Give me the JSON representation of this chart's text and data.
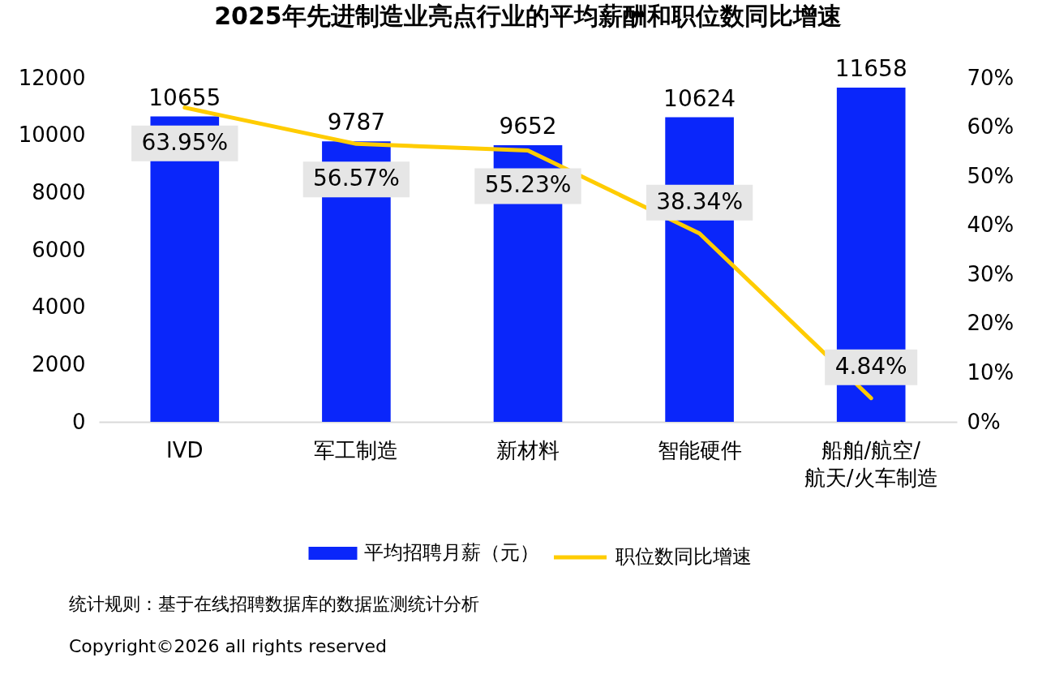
{
  "chart_data": {
    "type": "bar",
    "title": "2025年先进制造业亮点行业的平均薪酬和职位数同比增速",
    "categories": [
      "IVD",
      "军工制造",
      "新材料",
      "智能硬件",
      "船舶/航空/航天/火车制造"
    ],
    "series": [
      {
        "name": "平均招聘月薪（元）",
        "color": "#0a26fa",
        "values": [
          10655,
          9787,
          9652,
          10624,
          11658
        ],
        "value_labels": [
          "10655",
          "9787",
          "9652",
          "10624",
          "11658"
        ]
      },
      {
        "name": "职位数同比增速",
        "type": "line",
        "axis": "y2",
        "color": "#ffcc00",
        "values": [
          63.95,
          56.57,
          55.23,
          38.34,
          4.84
        ],
        "value_labels": [
          "63.95%",
          "56.57%",
          "55.23%",
          "38.34%",
          "4.84%"
        ]
      }
    ],
    "ylim": [
      0,
      12000
    ],
    "yticks": [
      0,
      2000,
      4000,
      6000,
      8000,
      10000,
      12000
    ],
    "y2lim": [
      0,
      70
    ],
    "y2ticks": [
      {
        "value": 0,
        "label": "0%"
      },
      {
        "value": 10,
        "label": "10%"
      },
      {
        "value": 20,
        "label": "20%"
      },
      {
        "value": 30,
        "label": "30%"
      },
      {
        "value": 40,
        "label": "40%"
      },
      {
        "value": 50,
        "label": "50%"
      },
      {
        "value": 60,
        "label": "60%"
      },
      {
        "value": 70,
        "label": "70%"
      }
    ],
    "legend": "bottom",
    "annotations": [
      "统计规则：基于在线招聘数据库的数据监测统计分析",
      "Copyright©2026 all rights reserved"
    ]
  }
}
